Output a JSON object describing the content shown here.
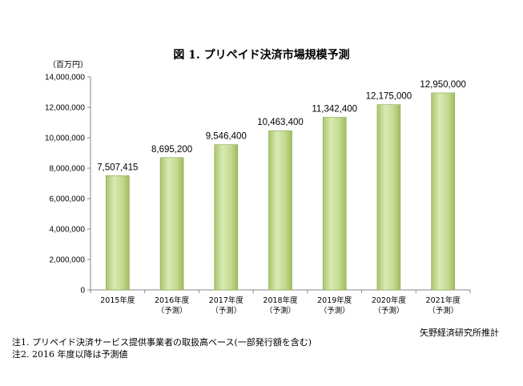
{
  "chart_data": {
    "type": "bar",
    "title": "図 1. プリペイド決済市場規模予測",
    "unit_label": "（百万円）",
    "categories": [
      [
        "2015年度",
        ""
      ],
      [
        "2016年度",
        "（予測）"
      ],
      [
        "2017年度",
        "（予測）"
      ],
      [
        "2018年度",
        "（予測）"
      ],
      [
        "2019年度",
        "（予測）"
      ],
      [
        "2020年度",
        "（予測）"
      ],
      [
        "2021年度",
        "（予測）"
      ]
    ],
    "values": [
      7507415,
      8695200,
      9546400,
      10463400,
      11342400,
      12175000,
      12950000
    ],
    "data_labels": [
      "7,507,415",
      "8,695,200",
      "9,546,400",
      "10,463,400",
      "11,342,400",
      "12,175,000",
      "12,950,000"
    ],
    "ylim": [
      0,
      14000000
    ],
    "yticks": [
      0,
      2000000,
      4000000,
      6000000,
      8000000,
      10000000,
      12000000,
      14000000
    ],
    "ytick_labels": [
      "0",
      "2,000,000",
      "4,000,000",
      "6,000,000",
      "8,000,000",
      "10,000,000",
      "12,000,000",
      "14,000,000"
    ],
    "grid": false,
    "bar_color": "#c6dc95"
  },
  "source": "矢野経済研究所推計",
  "notes": [
    "注1. プリペイド決済サービス提供事業者の取扱高ベース(一部発行額を含む)",
    "注2. 2016 年度以降は予測値"
  ]
}
